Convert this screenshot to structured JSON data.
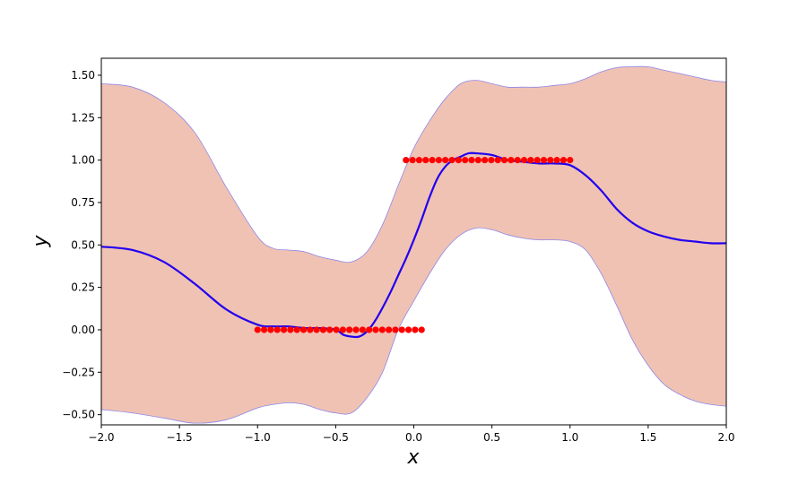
{
  "chart_data": {
    "type": "line",
    "xlabel": "x",
    "ylabel": "y",
    "xlim": [
      -2.0,
      2.0
    ],
    "ylim": [
      -0.56,
      1.6
    ],
    "grid": false,
    "xticks": [
      -2.0,
      -1.5,
      -1.0,
      -0.5,
      0.0,
      0.5,
      1.0,
      1.5,
      2.0
    ],
    "xtick_labels": [
      "−2.0",
      "−1.5",
      "−1.0",
      "−0.5",
      "0.0",
      "0.5",
      "1.0",
      "1.5",
      "2.0"
    ],
    "yticks": [
      -0.5,
      -0.25,
      0.0,
      0.25,
      0.5,
      0.75,
      1.0,
      1.25,
      1.5
    ],
    "ytick_labels": [
      "−0.50",
      "−0.25",
      "0.00",
      "0.25",
      "0.50",
      "0.75",
      "1.00",
      "1.25",
      "1.50"
    ],
    "mean_line": {
      "color": "#2200ee",
      "x": [
        -2.0,
        -1.8,
        -1.6,
        -1.4,
        -1.2,
        -1.0,
        -0.9,
        -0.8,
        -0.7,
        -0.6,
        -0.5,
        -0.45,
        -0.4,
        -0.35,
        -0.3,
        -0.25,
        -0.2,
        -0.15,
        -0.1,
        -0.05,
        0.0,
        0.05,
        0.1,
        0.15,
        0.2,
        0.25,
        0.3,
        0.35,
        0.4,
        0.5,
        0.6,
        0.7,
        0.8,
        0.9,
        1.0,
        1.1,
        1.2,
        1.3,
        1.4,
        1.5,
        1.6,
        1.7,
        1.8,
        1.9,
        2.0
      ],
      "y": [
        0.49,
        0.47,
        0.4,
        0.27,
        0.12,
        0.03,
        0.02,
        0.02,
        0.01,
        0.01,
        0.0,
        -0.03,
        -0.04,
        -0.04,
        -0.01,
        0.05,
        0.13,
        0.22,
        0.32,
        0.42,
        0.53,
        0.65,
        0.78,
        0.89,
        0.96,
        1.0,
        1.02,
        1.04,
        1.04,
        1.03,
        1.0,
        0.99,
        0.98,
        0.98,
        0.97,
        0.91,
        0.82,
        0.71,
        0.63,
        0.58,
        0.55,
        0.53,
        0.52,
        0.51,
        0.51
      ]
    },
    "confidence_band": {
      "fill": "#f0c2b4",
      "edge": "#8f88e8",
      "x": [
        -2.0,
        -1.8,
        -1.6,
        -1.4,
        -1.2,
        -1.0,
        -0.9,
        -0.8,
        -0.7,
        -0.6,
        -0.5,
        -0.4,
        -0.3,
        -0.2,
        -0.1,
        0.0,
        0.1,
        0.2,
        0.3,
        0.4,
        0.5,
        0.6,
        0.7,
        0.8,
        0.9,
        1.0,
        1.1,
        1.2,
        1.3,
        1.4,
        1.5,
        1.6,
        1.7,
        1.8,
        1.9,
        2.0
      ],
      "upper": [
        1.45,
        1.43,
        1.34,
        1.16,
        0.84,
        0.55,
        0.48,
        0.47,
        0.46,
        0.43,
        0.41,
        0.4,
        0.46,
        0.62,
        0.85,
        1.07,
        1.23,
        1.36,
        1.45,
        1.47,
        1.45,
        1.43,
        1.43,
        1.43,
        1.44,
        1.45,
        1.48,
        1.52,
        1.545,
        1.55,
        1.55,
        1.53,
        1.51,
        1.49,
        1.47,
        1.46
      ],
      "lower": [
        -0.47,
        -0.49,
        -0.52,
        -0.55,
        -0.53,
        -0.46,
        -0.44,
        -0.43,
        -0.44,
        -0.47,
        -0.49,
        -0.49,
        -0.4,
        -0.25,
        0.0,
        0.17,
        0.33,
        0.47,
        0.56,
        0.6,
        0.59,
        0.56,
        0.54,
        0.53,
        0.53,
        0.52,
        0.47,
        0.33,
        0.14,
        -0.06,
        -0.21,
        -0.32,
        -0.38,
        -0.42,
        -0.44,
        -0.45
      ]
    },
    "observations": {
      "color": "#ff0000",
      "series": [
        {
          "x_start": -1.0,
          "x_end": 0.05,
          "count": 26,
          "y": 0.0
        },
        {
          "x_start": -0.05,
          "x_end": 1.0,
          "count": 26,
          "y": 1.0
        }
      ]
    }
  }
}
